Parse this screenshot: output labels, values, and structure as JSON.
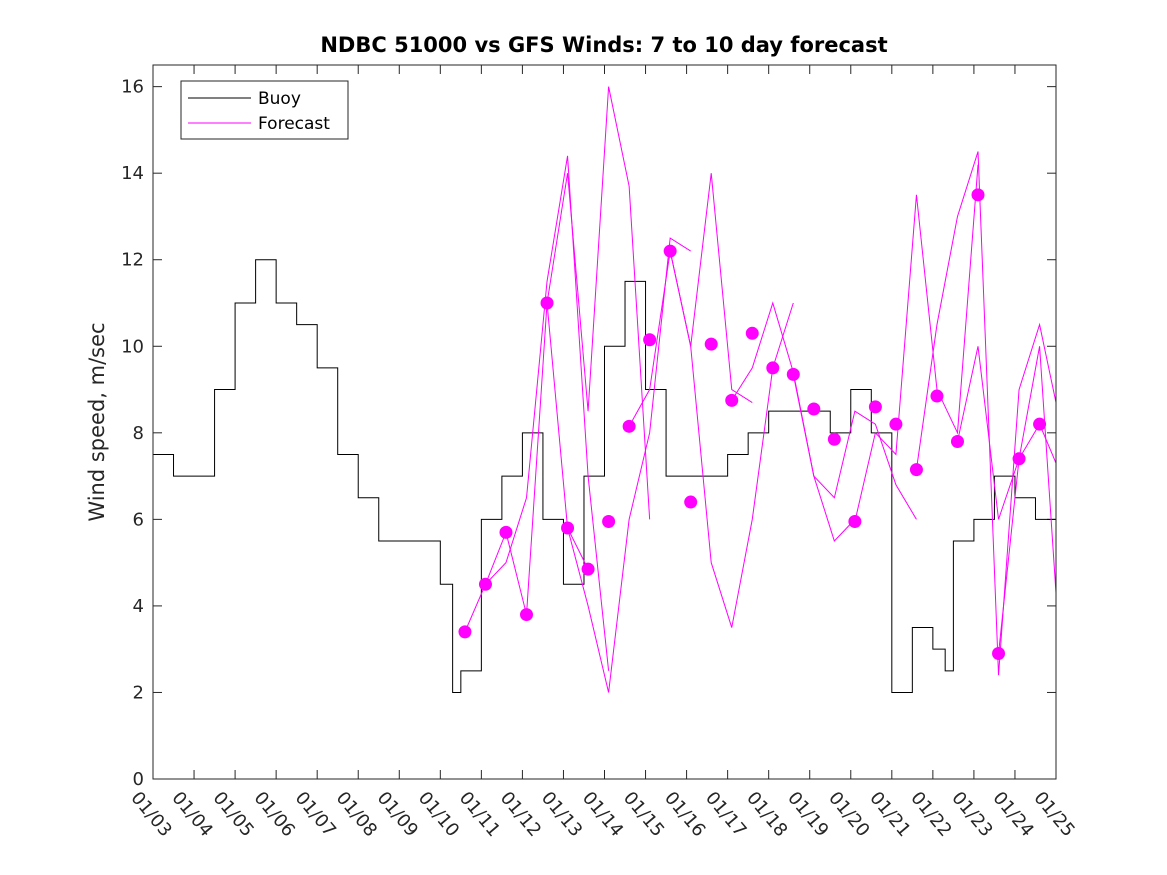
{
  "chart_data": {
    "type": "line",
    "title": "NDBC 51000 vs GFS Winds: 7 to 10 day forecast",
    "xlabel": "",
    "ylabel": "Wind speed, m/sec",
    "xlim": [
      0,
      22
    ],
    "ylim": [
      0,
      16.5
    ],
    "x_tick_values": [
      0,
      1,
      2,
      3,
      4,
      5,
      6,
      7,
      8,
      9,
      10,
      11,
      12,
      13,
      14,
      15,
      16,
      17,
      18,
      19,
      20,
      21,
      22
    ],
    "x_tick_labels": [
      "01/03",
      "01/04",
      "01/05",
      "01/06",
      "01/07",
      "01/08",
      "01/09",
      "01/10",
      "01/11",
      "01/12",
      "01/13",
      "01/14",
      "01/15",
      "01/16",
      "01/17",
      "01/18",
      "01/19",
      "01/20",
      "01/21",
      "01/22",
      "01/23",
      "01/24",
      "01/25"
    ],
    "y_tick_values": [
      0,
      2,
      4,
      6,
      8,
      10,
      12,
      14,
      16
    ],
    "y_tick_labels": [
      "0",
      "2",
      "4",
      "6",
      "8",
      "10",
      "12",
      "14",
      "16"
    ],
    "legend": {
      "position": "top-left",
      "entries": [
        {
          "label": "Buoy",
          "color": "#000000"
        },
        {
          "label": "Forecast",
          "color": "#ff00ff"
        }
      ]
    },
    "colors": {
      "buoy": "#000000",
      "forecast": "#ff00ff"
    },
    "series": [
      {
        "name": "Buoy",
        "x": [
          0,
          0.5,
          1,
          1.5,
          2,
          2.5,
          3,
          3.5,
          4,
          4.5,
          5,
          5.5,
          6,
          6.5,
          7,
          7.3,
          7.5,
          8,
          8.5,
          9,
          9.5,
          10,
          10.5,
          11,
          11.5,
          12,
          12.5,
          13,
          13.5,
          14,
          14.5,
          15,
          15.5,
          16,
          16.5,
          17,
          17.5,
          18,
          18.5,
          19,
          19.3,
          19.5,
          20,
          20.5,
          21,
          21.5,
          22
        ],
        "y": [
          7.5,
          7,
          7,
          9,
          11,
          12,
          11,
          10.5,
          9.5,
          7.5,
          6.5,
          5.5,
          5.5,
          5.5,
          4.5,
          2,
          2.5,
          6,
          7,
          8,
          6,
          4.5,
          7,
          10,
          11.5,
          9,
          7,
          7,
          7,
          7.5,
          8,
          8.5,
          8.5,
          8.5,
          8,
          9,
          8,
          2,
          3.5,
          3,
          2.5,
          5.5,
          6,
          7,
          6.5,
          6,
          6.5
        ]
      },
      {
        "name": "Forecast",
        "markers": {
          "x": [
            7.6,
            8.1,
            8.6,
            9.1,
            9.6,
            10.1,
            10.6,
            11.1,
            11.6,
            12.1,
            12.6,
            13.1,
            13.6,
            14.1,
            14.6,
            15.1,
            15.6,
            16.1,
            16.6,
            17.1,
            17.6,
            18.1,
            18.6,
            19.1,
            19.6,
            20.1,
            20.6,
            21.1,
            21.6
          ],
          "y": [
            3.4,
            4.5,
            5.7,
            3.8,
            11.0,
            5.8,
            4.85,
            5.95,
            8.15,
            10.15,
            12.2,
            6.4,
            10.05,
            8.75,
            10.3,
            9.5,
            9.35,
            8.55,
            7.85,
            5.95,
            8.6,
            8.2,
            7.15,
            8.85,
            7.8,
            13.5,
            2.9,
            7.4,
            8.2
          ]
        },
        "traces": [
          {
            "x": [
              7.6,
              8.1,
              8.6,
              9.1,
              9.6,
              10.1,
              10.6
            ],
            "y": [
              3.4,
              4.5,
              5.7,
              3.8,
              11.0,
              5.8,
              4.85
            ]
          },
          {
            "x": [
              8.1,
              8.6,
              9.1,
              9.6,
              10.1,
              10.6,
              11.1
            ],
            "y": [
              4.5,
              5.0,
              6.5,
              11.5,
              14.4,
              7.0,
              2.5
            ]
          },
          {
            "x": [
              9.6,
              10.1,
              10.6,
              11.1,
              11.6,
              12.1
            ],
            "y": [
              11.0,
              14.0,
              8.5,
              16.0,
              13.7,
              6.0
            ]
          },
          {
            "x": [
              10.1,
              10.6,
              11.1,
              11.6,
              12.1,
              12.6,
              13.1
            ],
            "y": [
              5.8,
              4.0,
              2.0,
              6.0,
              8.0,
              12.5,
              12.2
            ]
          },
          {
            "x": [
              11.6,
              12.1,
              12.6,
              13.1,
              13.6,
              14.1,
              14.6
            ],
            "y": [
              8.15,
              9.0,
              12.2,
              10.0,
              14.0,
              9.0,
              8.7
            ]
          },
          {
            "x": [
              12.6,
              13.1,
              13.6,
              14.1,
              14.6,
              15.1,
              15.6
            ],
            "y": [
              12.2,
              10.0,
              5.0,
              3.5,
              6.0,
              9.5,
              11.0
            ]
          },
          {
            "x": [
              14.1,
              14.6,
              15.1,
              15.6,
              16.1,
              16.6,
              17.1
            ],
            "y": [
              8.75,
              9.5,
              11.0,
              9.4,
              7.0,
              5.5,
              6.0
            ]
          },
          {
            "x": [
              15.6,
              16.1,
              16.6,
              17.1,
              17.6,
              18.1,
              18.6
            ],
            "y": [
              9.35,
              7.0,
              6.5,
              8.5,
              8.2,
              6.8,
              6.0
            ]
          },
          {
            "x": [
              17.1,
              17.6,
              18.1,
              18.6,
              19.1,
              19.6,
              20.1
            ],
            "y": [
              5.95,
              8.0,
              7.5,
              13.5,
              9.0,
              8.0,
              14.2
            ]
          },
          {
            "x": [
              18.6,
              19.1,
              19.6,
              20.1,
              20.6,
              21.1,
              21.6,
              22
            ],
            "y": [
              7.15,
              10.5,
              13.0,
              14.5,
              2.4,
              9.0,
              10.5,
              8.7
            ]
          },
          {
            "x": [
              19.6,
              20.1,
              20.6,
              21.1,
              21.6,
              22
            ],
            "y": [
              7.8,
              10.0,
              6.0,
              7.4,
              10.0,
              4.3
            ]
          },
          {
            "x": [
              20.6,
              21.1,
              21.6,
              22
            ],
            "y": [
              2.9,
              7.4,
              8.2,
              7.3
            ]
          }
        ]
      }
    ]
  }
}
